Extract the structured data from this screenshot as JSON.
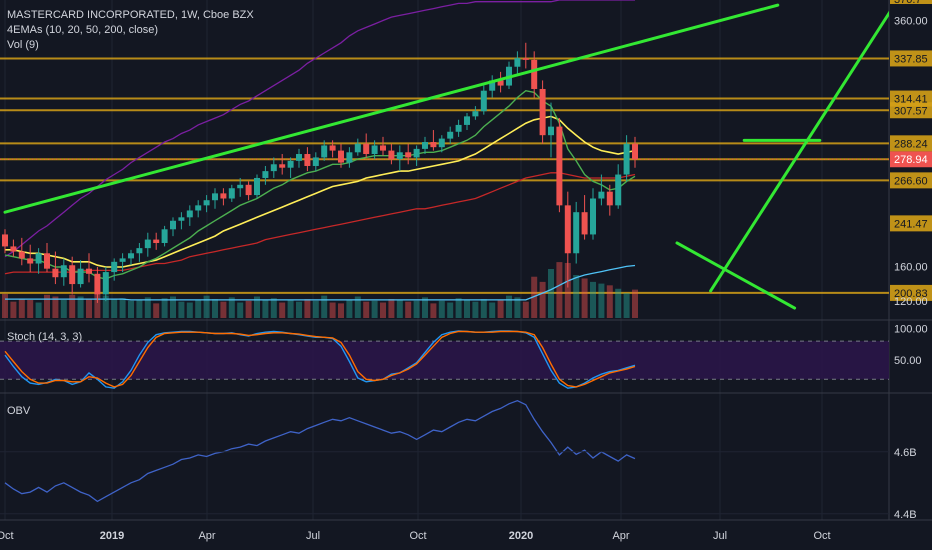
{
  "legend": {
    "symbol": "MASTERCARD INCORPORATED, 1W, Cboe BZX",
    "emas": "4EMAs (10, 20, 50, 200, close)",
    "volume": "Vol (9)",
    "stoch": "Stoch (14, 3, 3)",
    "obv": "OBV"
  },
  "colors": {
    "background": "#131722",
    "up": "#26a69a",
    "down": "#ef5350",
    "hline": "#d4a017",
    "trend": "#33e833",
    "ema10": "#4caf50",
    "ema20": "#ffee58",
    "ema50": "#c62828",
    "ema200": "#7b1fa2",
    "vol_ma": "#4fc3f7",
    "stoch_k": "#2196f3",
    "stoch_d": "#ff6d00",
    "obv": "#3f63c8",
    "last_price_bg": "#ef5350"
  },
  "chart_data": [
    {
      "type": "candlestick",
      "name": "price",
      "x_ticks": [
        "Oct",
        "2019",
        "Apr",
        "Jul",
        "Oct",
        "2020",
        "Apr",
        "Jul",
        "Oct"
      ],
      "y_ticks": [
        "200.83",
        "241.47",
        "266.60",
        "278.94",
        "288.24",
        "307.57",
        "314.41",
        "337.85",
        "360.00"
      ],
      "y_top_cut": "370.7",
      "ylim": [
        185,
        372
      ],
      "horizontal_levels": [
        200.83,
        266.6,
        278.94,
        288.24,
        307.57,
        314.41,
        337.85
      ],
      "last_price": 278.94,
      "candles": [
        [
          235,
          238,
          224,
          228
        ],
        [
          228,
          232,
          222,
          225
        ],
        [
          225,
          233,
          217,
          221
        ],
        [
          221,
          229,
          213,
          218
        ],
        [
          218,
          227,
          212,
          224
        ],
        [
          224,
          230,
          213,
          215
        ],
        [
          215,
          225,
          206,
          210
        ],
        [
          210,
          221,
          205,
          217
        ],
        [
          217,
          222,
          200,
          206
        ],
        [
          206,
          220,
          204,
          215
        ],
        [
          215,
          224,
          207,
          212
        ],
        [
          212,
          216,
          195,
          200
        ],
        [
          200,
          216,
          196,
          213
        ],
        [
          213,
          221,
          208,
          219
        ],
        [
          219,
          224,
          213,
          221
        ],
        [
          221,
          226,
          217,
          224
        ],
        [
          224,
          230,
          219,
          227
        ],
        [
          227,
          236,
          222,
          232
        ],
        [
          232,
          236,
          226,
          230
        ],
        [
          230,
          240,
          228,
          238
        ],
        [
          238,
          245,
          234,
          243
        ],
        [
          243,
          248,
          238,
          245
        ],
        [
          245,
          252,
          240,
          249
        ],
        [
          249,
          255,
          245,
          252
        ],
        [
          252,
          258,
          248,
          255
        ],
        [
          255,
          262,
          250,
          259
        ],
        [
          259,
          262,
          252,
          256
        ],
        [
          256,
          264,
          254,
          262
        ],
        [
          262,
          268,
          257,
          264
        ],
        [
          264,
          266,
          255,
          258
        ],
        [
          258,
          270,
          256,
          268
        ],
        [
          268,
          275,
          264,
          272
        ],
        [
          272,
          280,
          268,
          276
        ],
        [
          276,
          282,
          270,
          274
        ],
        [
          274,
          280,
          268,
          278
        ],
        [
          278,
          285,
          274,
          282
        ],
        [
          282,
          286,
          272,
          275
        ],
        [
          275,
          283,
          272,
          280
        ],
        [
          280,
          290,
          278,
          287
        ],
        [
          287,
          290,
          280,
          284
        ],
        [
          284,
          288,
          274,
          277
        ],
        [
          277,
          286,
          274,
          283
        ],
        [
          283,
          291,
          281,
          288
        ],
        [
          288,
          294,
          280,
          282
        ],
        [
          282,
          290,
          279,
          287
        ],
        [
          287,
          292,
          281,
          284
        ],
        [
          284,
          288,
          276,
          279
        ],
        [
          279,
          287,
          272,
          283
        ],
        [
          283,
          288,
          276,
          280
        ],
        [
          280,
          287,
          275,
          285
        ],
        [
          285,
          292,
          282,
          289
        ],
        [
          289,
          296,
          284,
          286
        ],
        [
          286,
          293,
          283,
          291
        ],
        [
          291,
          298,
          288,
          295
        ],
        [
          295,
          302,
          292,
          299
        ],
        [
          299,
          306,
          296,
          304
        ],
        [
          304,
          310,
          302,
          307
        ],
        [
          307,
          322,
          305,
          319
        ],
        [
          319,
          328,
          315,
          325
        ],
        [
          325,
          330,
          318,
          322
        ],
        [
          322,
          336,
          320,
          333
        ],
        [
          333,
          342,
          328,
          338
        ],
        [
          338,
          347,
          332,
          337
        ],
        [
          337,
          342,
          315,
          320
        ],
        [
          320,
          325,
          288,
          293
        ],
        [
          293,
          312,
          280,
          298
        ],
        [
          298,
          303,
          248,
          252
        ],
        [
          252,
          260,
          204,
          224
        ],
        [
          224,
          254,
          218,
          248
        ],
        [
          248,
          258,
          232,
          235
        ],
        [
          235,
          262,
          232,
          256
        ],
        [
          256,
          270,
          252,
          260
        ],
        [
          260,
          264,
          246,
          252
        ],
        [
          252,
          276,
          250,
          270
        ],
        [
          270,
          293,
          266,
          288
        ],
        [
          288,
          292,
          274,
          279
        ]
      ],
      "ema10": [
        223,
        222,
        221,
        220,
        220,
        218,
        216,
        216,
        213,
        213,
        213,
        210,
        209,
        211,
        212,
        214,
        216,
        219,
        221,
        224,
        227,
        230,
        233,
        237,
        240,
        243,
        246,
        249,
        252,
        254,
        256,
        259,
        262,
        264,
        267,
        269,
        271,
        272,
        274,
        276,
        276,
        277,
        279,
        280,
        281,
        281,
        281,
        281,
        281,
        282,
        283,
        283,
        284,
        286,
        288,
        290,
        293,
        298,
        302,
        306,
        310,
        315,
        319,
        318,
        313,
        310,
        300,
        285,
        278,
        270,
        266,
        264,
        261,
        262,
        266,
        269
      ],
      "ema20": [
        226,
        226,
        225,
        224,
        224,
        223,
        222,
        221,
        219,
        219,
        219,
        217,
        216,
        216,
        216,
        217,
        218,
        219,
        220,
        222,
        224,
        226,
        228,
        230,
        232,
        234,
        237,
        239,
        241,
        243,
        245,
        247,
        249,
        251,
        253,
        255,
        257,
        259,
        261,
        263,
        264,
        265,
        266,
        268,
        269,
        270,
        271,
        272,
        272,
        273,
        274,
        275,
        276,
        277,
        278,
        280,
        282,
        285,
        288,
        291,
        294,
        297,
        300,
        302,
        303,
        304,
        302,
        297,
        293,
        289,
        286,
        284,
        283,
        282,
        283,
        284
      ],
      "ema50": [
        212,
        213,
        213,
        213,
        213,
        213,
        213,
        213,
        213,
        214,
        214,
        214,
        214,
        214,
        214,
        215,
        216,
        217,
        218,
        218,
        219,
        220,
        222,
        223,
        224,
        225,
        226,
        227,
        228,
        229,
        230,
        232,
        233,
        234,
        235,
        236,
        237,
        238,
        239,
        240,
        241,
        242,
        243,
        244,
        245,
        246,
        247,
        248,
        249,
        250,
        250,
        251,
        252,
        253,
        254,
        255,
        256,
        258,
        260,
        262,
        264,
        266,
        268,
        269,
        270,
        271,
        271,
        270,
        269,
        268,
        268,
        268,
        268,
        268,
        269,
        270
      ],
      "ema200": [
        222,
        225,
        229,
        233,
        237,
        240,
        244,
        248,
        252,
        256,
        259,
        263,
        267,
        270,
        273,
        277,
        280,
        283,
        286,
        289,
        291,
        294,
        296,
        299,
        301,
        303,
        305,
        308,
        311,
        313,
        316,
        319,
        322,
        325,
        328,
        331,
        335,
        338,
        341,
        344,
        347,
        351,
        354,
        356,
        358,
        360,
        362,
        363,
        364,
        365,
        366,
        367,
        368,
        369,
        370,
        370,
        371,
        371,
        371,
        371,
        371,
        371,
        371,
        371,
        371,
        371,
        372,
        372,
        372,
        372,
        372,
        372,
        372,
        372,
        372,
        372
      ],
      "trendlines": [
        {
          "from": [
            0,
            248
          ],
          "to": [
            92,
            369
          ]
        },
        {
          "from": [
            88,
            290
          ],
          "to": [
            97,
            290
          ]
        },
        {
          "from": [
            84,
            202
          ],
          "to": [
            106,
            370
          ]
        },
        {
          "from": [
            80,
            230
          ],
          "to": [
            94,
            192
          ]
        }
      ]
    },
    {
      "type": "bar",
      "name": "volume",
      "y_ticks": [
        "120.00",
        "160.00"
      ],
      "ylim": [
        100,
        200
      ],
      "values": [
        128,
        119,
        122,
        121,
        118,
        127,
        125,
        121,
        127,
        125,
        122,
        128,
        126,
        122,
        123,
        120,
        121,
        124,
        117,
        123,
        125,
        119,
        118,
        121,
        126,
        122,
        119,
        124,
        118,
        120,
        125,
        121,
        123,
        118,
        121,
        119,
        122,
        120,
        126,
        118,
        117,
        121,
        125,
        119,
        120,
        118,
        122,
        121,
        119,
        120,
        124,
        117,
        120,
        118,
        123,
        121,
        119,
        122,
        118,
        121,
        126,
        124,
        119,
        148,
        142,
        157,
        165,
        164,
        150,
        146,
        142,
        140,
        138,
        134,
        129,
        133
      ],
      "ma": [
        122,
        122,
        122,
        122,
        122,
        122,
        122,
        122,
        122,
        122,
        122,
        122,
        122,
        122,
        122,
        121,
        121,
        121,
        121,
        121,
        121,
        121,
        121,
        121,
        121,
        121,
        121,
        121,
        121,
        121,
        121,
        121,
        121,
        121,
        121,
        121,
        121,
        121,
        121,
        121,
        121,
        121,
        121,
        121,
        121,
        121,
        121,
        121,
        121,
        121,
        121,
        121,
        121,
        121,
        121,
        121,
        121,
        121,
        121,
        121,
        121,
        121,
        121,
        125,
        129,
        133,
        138,
        143,
        147,
        150,
        152,
        154,
        156,
        158,
        160,
        161
      ]
    },
    {
      "type": "line",
      "name": "stochastic",
      "y_ticks": [
        "100.00",
        "50.00"
      ],
      "ylim": [
        0,
        110
      ],
      "bands": [
        20,
        80
      ],
      "series": [
        {
          "name": "%K",
          "values": [
            58,
            40,
            24,
            14,
            12,
            15,
            20,
            18,
            12,
            16,
            30,
            20,
            8,
            6,
            16,
            34,
            58,
            78,
            90,
            93,
            94,
            95,
            95,
            94,
            93,
            92,
            92,
            93,
            90,
            88,
            92,
            94,
            95,
            94,
            92,
            90,
            88,
            86,
            86,
            84,
            72,
            48,
            22,
            16,
            18,
            20,
            28,
            30,
            38,
            46,
            62,
            78,
            90,
            94,
            96,
            95,
            94,
            94,
            95,
            96,
            96,
            95,
            93,
            86,
            60,
            34,
            14,
            6,
            8,
            14,
            22,
            28,
            32,
            34,
            38,
            42
          ]
        },
        {
          "name": "%D",
          "values": [
            64,
            48,
            32,
            20,
            14,
            14,
            18,
            18,
            16,
            16,
            24,
            22,
            14,
            8,
            12,
            26,
            48,
            70,
            86,
            92,
            93,
            94,
            94,
            94,
            93,
            92,
            92,
            92,
            91,
            89,
            90,
            92,
            93,
            93,
            92,
            91,
            89,
            87,
            86,
            85,
            78,
            58,
            32,
            20,
            18,
            20,
            26,
            30,
            36,
            44,
            58,
            72,
            86,
            92,
            95,
            95,
            94,
            94,
            94,
            95,
            95,
            95,
            94,
            90,
            70,
            44,
            20,
            10,
            8,
            12,
            18,
            24,
            30,
            33,
            36,
            40
          ]
        }
      ]
    },
    {
      "type": "line",
      "name": "obv",
      "y_ticks": [
        "4.4B",
        "4.6B"
      ],
      "ylim": [
        4.38,
        4.78
      ],
      "values": [
        4.5,
        4.48,
        4.465,
        4.47,
        4.485,
        4.47,
        4.49,
        4.5,
        4.485,
        4.47,
        4.46,
        4.44,
        4.455,
        4.47,
        4.485,
        4.5,
        4.51,
        4.53,
        4.54,
        4.55,
        4.56,
        4.575,
        4.58,
        4.59,
        4.585,
        4.595,
        4.6,
        4.61,
        4.615,
        4.625,
        4.62,
        4.635,
        4.645,
        4.655,
        4.665,
        4.66,
        4.675,
        4.685,
        4.695,
        4.705,
        4.7,
        4.71,
        4.7,
        4.69,
        4.68,
        4.67,
        4.66,
        4.665,
        4.655,
        4.64,
        4.655,
        4.67,
        4.665,
        4.68,
        4.695,
        4.705,
        4.7,
        4.715,
        4.73,
        4.74,
        4.755,
        4.765,
        4.752,
        4.705,
        4.665,
        4.63,
        4.59,
        4.615,
        4.592,
        4.605,
        4.58,
        4.6,
        4.585,
        4.57,
        4.59,
        4.578
      ]
    }
  ]
}
